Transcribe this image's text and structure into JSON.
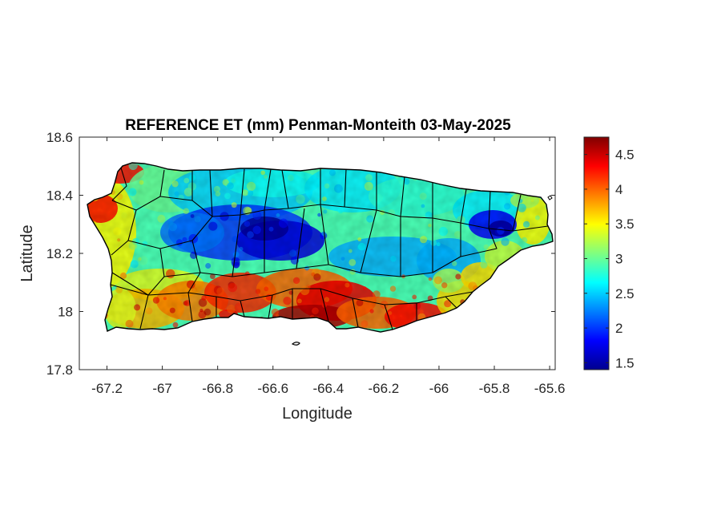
{
  "chart_data": {
    "type": "heatmap",
    "title": "REFERENCE ET (mm) Penman-Monteith 03-May-2025",
    "xlabel": "Longitude",
    "ylabel": "Latitude",
    "xlim": [
      -67.3,
      -65.58
    ],
    "ylim": [
      17.8,
      18.6
    ],
    "xticks": [
      -67.2,
      -67,
      -66.8,
      -66.6,
      -66.4,
      -66.2,
      -66,
      -65.8,
      -65.6
    ],
    "yticks": [
      17.8,
      18,
      18.2,
      18.4,
      18.6
    ],
    "colormap": "jet",
    "colorbar": {
      "range": [
        1.4,
        4.75
      ],
      "ticks": [
        1.5,
        2,
        2.5,
        3,
        3.5,
        4,
        4.5
      ]
    },
    "grid": false,
    "legend": "colorbar-right",
    "colors": {
      "axes_edge": "#262626",
      "boundary": "#000000"
    }
  }
}
